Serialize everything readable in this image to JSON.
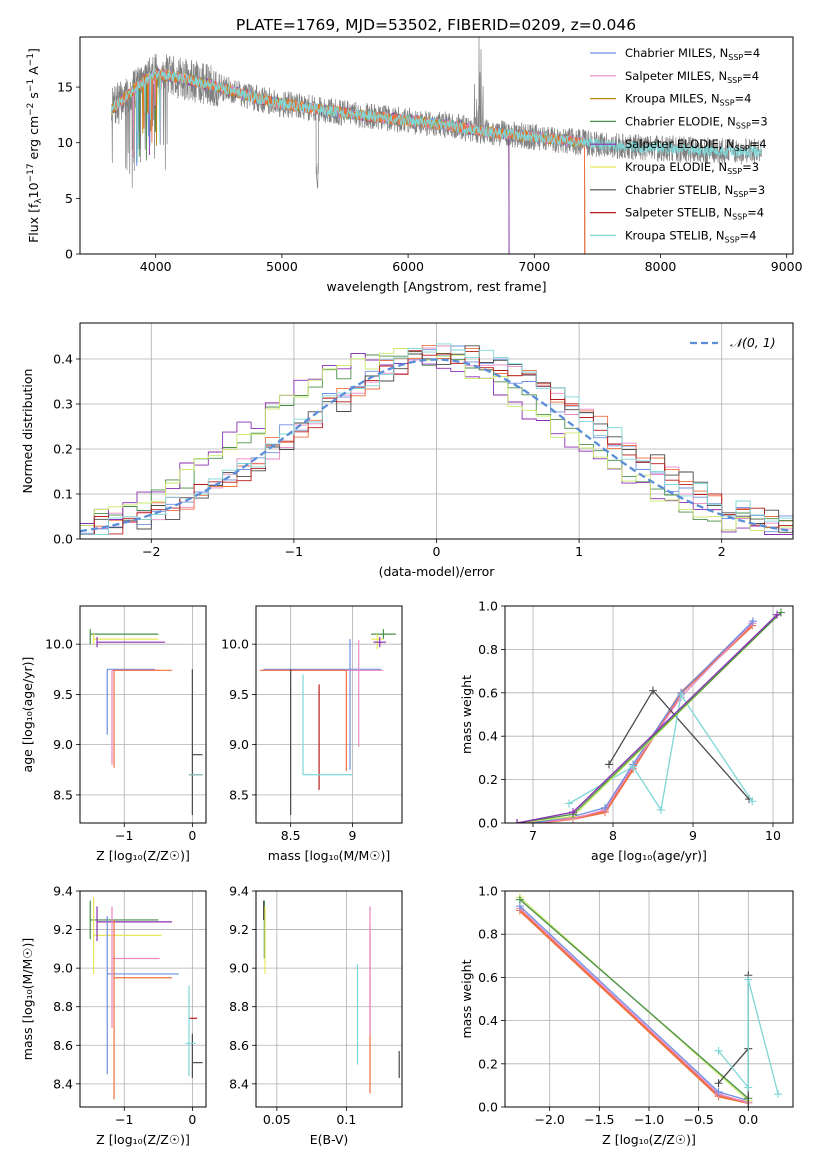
{
  "figure": {
    "title": "PLATE=1769, MJD=53502, FIBERID=0209, z=0.046"
  },
  "colors": {
    "chabrier_miles": "#6f8fe0",
    "salpeter_miles": "#e987c3",
    "kroupa_miles": "#b8860b",
    "chabrier_elodie": "#4a8f4a",
    "salpeter_elodie": "#8b2fb3",
    "kroupa_elodie": "#e8e85a",
    "chabrier_stelib": "#4a4a4a",
    "salpeter_stelib": "#b81c1c",
    "kroupa_stelib": "#7fd6d6",
    "data": "#808080",
    "gauss": "#5b8ed8",
    "orange": "#f07040",
    "lime": "#c8e86a"
  },
  "chart_data": [
    {
      "id": "spectrum",
      "type": "line",
      "xlabel": "wavelength [Angstrom, rest frame]",
      "ylabel_parts": [
        "Flux [f",
        "λ",
        "10",
        "−17",
        " erg cm",
        "−2",
        " s",
        "−1",
        " A",
        "−1",
        "]"
      ],
      "xlim": [
        3400,
        9050
      ],
      "ylim": [
        0,
        19.5
      ],
      "xticks": [
        4000,
        5000,
        6000,
        7000,
        8000,
        9000
      ],
      "yticks": [
        0,
        5,
        10,
        15
      ],
      "grid": false,
      "legend_position": "upper-right",
      "legend": [
        {
          "name": "Chabrier MILES, N",
          "sub": "SSP",
          "suffix": "=4",
          "color_key": "chabrier_miles"
        },
        {
          "name": "Salpeter MILES, N",
          "sub": "SSP",
          "suffix": "=4",
          "color_key": "salpeter_miles"
        },
        {
          "name": "Kroupa MILES, N",
          "sub": "SSP",
          "suffix": "=4",
          "color_key": "kroupa_miles"
        },
        {
          "name": "Chabrier ELODIE, N",
          "sub": "SSP",
          "suffix": "=3",
          "color_key": "chabrier_elodie"
        },
        {
          "name": "Salpeter ELODIE, N",
          "sub": "SSP",
          "suffix": "=4",
          "color_key": "salpeter_elodie"
        },
        {
          "name": "Kroupa ELODIE, N",
          "sub": "SSP",
          "suffix": "=3",
          "color_key": "kroupa_elodie"
        },
        {
          "name": "Chabrier STELIB, N",
          "sub": "SSP",
          "suffix": "=3",
          "color_key": "chabrier_stelib"
        },
        {
          "name": "Salpeter STELIB, N",
          "sub": "SSP",
          "suffix": "=4",
          "color_key": "salpeter_stelib"
        },
        {
          "name": "Kroupa STELIB, N",
          "sub": "SSP",
          "suffix": "=4",
          "color_key": "kroupa_stelib"
        }
      ],
      "continuum_x": [
        3650,
        3800,
        3900,
        4000,
        4200,
        4500,
        4800,
        5000,
        5300,
        5600,
        6000,
        6300,
        6600,
        7000,
        7400,
        7800,
        8200,
        8600,
        8800
      ],
      "continuum_y": [
        13.0,
        14.5,
        15.5,
        16.2,
        15.8,
        15.0,
        14.0,
        13.5,
        13.0,
        12.5,
        12.0,
        11.6,
        11.0,
        10.5,
        10.0,
        9.6,
        9.4,
        9.2,
        9.2
      ],
      "model_end_x": {
        "miles": 7400,
        "elodie": 6800,
        "stelib": 8800
      }
    },
    {
      "id": "residuals",
      "type": "step",
      "xlabel": "(data-model)/error",
      "ylabel": "Normed distribution",
      "xlim": [
        -2.5,
        2.5
      ],
      "ylim": [
        0,
        0.48
      ],
      "xticks": [
        -2,
        -1,
        0,
        1,
        2
      ],
      "yticks": [
        0.0,
        0.1,
        0.2,
        0.3,
        0.4
      ],
      "grid": true,
      "legend_position": "upper-right",
      "legend": [
        {
          "name": "𝒩(0, 1)",
          "color_key": "gauss",
          "style": "dashed"
        }
      ],
      "bin_width": 0.1,
      "bin_start": -2.5
    },
    {
      "id": "age_vs_Z",
      "type": "errorbar",
      "xlabel": "Z [log₁₀(Z/Z☉)]",
      "ylabel": "age  [log₁₀(age/yr)]",
      "xlim": [
        -1.65,
        0.2
      ],
      "ylim": [
        8.22,
        10.38
      ],
      "xticks": [
        -1,
        0
      ],
      "yticks": [
        8.5,
        9.0,
        9.5,
        10.0
      ],
      "grid": true,
      "points": [
        {
          "x": -1.5,
          "xerr": [
            0.0,
            1.0
          ],
          "y": 10.1,
          "yerr": [
            0.1,
            0.05
          ],
          "color_key": "chabrier_elodie"
        },
        {
          "x": -1.45,
          "xerr": [
            0.0,
            0.95
          ],
          "y": 10.05,
          "yerr": [
            0.05,
            0.05
          ],
          "color_key": "kroupa_elodie"
        },
        {
          "x": -1.4,
          "xerr": [
            0.0,
            1.0
          ],
          "y": 10.02,
          "yerr": [
            0.05,
            0.05
          ],
          "color_key": "salpeter_elodie"
        },
        {
          "x": -1.25,
          "xerr": [
            0.0,
            0.7
          ],
          "y": 9.75,
          "yerr": [
            0.65,
            0.0
          ],
          "color_key": "chabrier_miles"
        },
        {
          "x": -1.18,
          "xerr": [
            0.0,
            0.7
          ],
          "y": 9.74,
          "yerr": [
            0.94,
            0.0
          ],
          "color_key": "salpeter_miles"
        },
        {
          "x": -1.15,
          "xerr": [
            0.0,
            0.85
          ],
          "y": 9.74,
          "yerr": [
            0.97,
            0.0
          ],
          "color_key": "orange"
        },
        {
          "x": 0.0,
          "xerr": [
            0.0,
            0.15
          ],
          "y": 8.9,
          "yerr": [
            0.6,
            0.85
          ],
          "color_key": "chabrier_stelib"
        },
        {
          "x": -0.05,
          "xerr": [
            0.0,
            0.2
          ],
          "y": 8.7,
          "yerr": [
            0.0,
            0.0
          ],
          "color_key": "salpeter_stelib"
        },
        {
          "x": -0.05,
          "xerr": [
            0.0,
            0.2
          ],
          "y": 8.7,
          "yerr": [
            0.0,
            0.0
          ],
          "color_key": "kroupa_stelib"
        }
      ]
    },
    {
      "id": "age_vs_mass",
      "type": "errorbar",
      "xlabel": "mass [log₁₀(M/M☉)]",
      "ylabel": "",
      "xlim": [
        8.22,
        9.4
      ],
      "ylim": [
        8.22,
        10.38
      ],
      "xticks": [
        8.5,
        9.0
      ],
      "yticks": [
        8.5,
        9.0,
        9.5,
        10.0
      ],
      "grid": true,
      "points": [
        {
          "x": 9.25,
          "xerr": [
            0.1,
            0.1
          ],
          "y": 10.1,
          "yerr": [
            0.05,
            0.05
          ],
          "color_key": "chabrier_elodie"
        },
        {
          "x": 9.2,
          "xerr": [
            0.05,
            0.05
          ],
          "y": 10.05,
          "yerr": [
            0.1,
            0.05
          ],
          "color_key": "kroupa_elodie"
        },
        {
          "x": 9.22,
          "xerr": [
            0.05,
            0.05
          ],
          "y": 10.02,
          "yerr": [
            0.05,
            0.05
          ],
          "color_key": "salpeter_elodie"
        },
        {
          "x": 8.98,
          "xerr": [
            0.7,
            0.25
          ],
          "y": 9.75,
          "yerr": [
            1.0,
            0.3
          ],
          "color_key": "chabrier_miles"
        },
        {
          "x": 9.05,
          "xerr": [
            0.75,
            0.2
          ],
          "y": 9.74,
          "yerr": [
            0.76,
            0.3
          ],
          "color_key": "salpeter_miles"
        },
        {
          "x": 8.95,
          "xerr": [
            0.7,
            0.0
          ],
          "y": 9.74,
          "yerr": [
            1.0,
            0.0
          ],
          "color_key": "orange"
        },
        {
          "x": 8.5,
          "xerr": [
            0.0,
            0.0
          ],
          "y": 8.9,
          "yerr": [
            0.6,
            0.85
          ],
          "color_key": "chabrier_stelib"
        },
        {
          "x": 8.73,
          "xerr": [
            0.0,
            0.0
          ],
          "y": 8.7,
          "yerr": [
            0.15,
            0.9
          ],
          "color_key": "salpeter_stelib"
        },
        {
          "x": 8.6,
          "xerr": [
            0.0,
            0.4
          ],
          "y": 8.7,
          "yerr": [
            0.0,
            1.0
          ],
          "color_key": "kroupa_stelib"
        }
      ]
    },
    {
      "id": "weight_vs_age",
      "type": "line",
      "xlabel": "age  [log₁₀(age/yr)]",
      "ylabel": "mass weight",
      "xlim": [
        6.65,
        10.25
      ],
      "ylim": [
        0,
        1.0
      ],
      "xticks": [
        7,
        8,
        9,
        10
      ],
      "yticks": [
        0.0,
        0.2,
        0.4,
        0.6,
        0.8,
        1.0
      ],
      "grid": true,
      "series": [
        {
          "color_key": "orange",
          "x": [
            6.8,
            7.0,
            7.5,
            7.9,
            8.25,
            8.85,
            9.74
          ],
          "y": [
            0.0,
            0.0,
            0.02,
            0.05,
            0.25,
            0.6,
            0.91
          ]
        },
        {
          "color_key": "salpeter_miles",
          "x": [
            6.8,
            7.0,
            7.5,
            7.9,
            8.25,
            8.85,
            9.74
          ],
          "y": [
            0.0,
            0.0,
            0.02,
            0.06,
            0.26,
            0.58,
            0.92
          ]
        },
        {
          "color_key": "chabrier_miles",
          "x": [
            6.8,
            7.0,
            7.5,
            7.9,
            8.25,
            8.85,
            9.75
          ],
          "y": [
            0.0,
            0.0,
            0.03,
            0.07,
            0.27,
            0.6,
            0.93
          ]
        },
        {
          "color_key": "chabrier_stelib",
          "x": [
            7.95,
            8.5,
            9.7
          ],
          "y": [
            0.27,
            0.61,
            0.11
          ]
        },
        {
          "color_key": "kroupa_stelib",
          "x": [
            7.45,
            8.25,
            8.6,
            8.85,
            9.74
          ],
          "y": [
            0.09,
            0.26,
            0.06,
            0.59,
            0.1
          ]
        },
        {
          "color_key": "lime",
          "x": [
            6.8,
            7.5,
            10.1
          ],
          "y": [
            0.0,
            0.03,
            0.97
          ]
        },
        {
          "color_key": "chabrier_elodie",
          "x": [
            6.8,
            7.5,
            10.1
          ],
          "y": [
            0.0,
            0.04,
            0.97
          ]
        },
        {
          "color_key": "salpeter_elodie",
          "x": [
            6.8,
            7.5,
            10.05
          ],
          "y": [
            0.0,
            0.05,
            0.96
          ]
        }
      ]
    },
    {
      "id": "mass_vs_Z",
      "type": "errorbar",
      "xlabel": "Z [log₁₀(Z/Z☉)]",
      "ylabel": "mass [log₁₀(M/M☉)]",
      "xlim": [
        -1.65,
        0.2
      ],
      "ylim": [
        8.28,
        9.4
      ],
      "xticks": [
        -1,
        0
      ],
      "yticks": [
        8.4,
        8.6,
        8.8,
        9.0,
        9.2,
        9.4
      ],
      "grid": true,
      "points": [
        {
          "x": -1.5,
          "xerr": [
            0.0,
            1.0
          ],
          "y": 9.25,
          "yerr": [
            0.1,
            0.1
          ],
          "color_key": "chabrier_elodie"
        },
        {
          "x": -1.45,
          "xerr": [
            0.0,
            1.0
          ],
          "y": 9.17,
          "yerr": [
            0.2,
            0.2
          ],
          "color_key": "kroupa_elodie"
        },
        {
          "x": -1.4,
          "xerr": [
            0.0,
            1.1
          ],
          "y": 9.24,
          "yerr": [
            0.1,
            0.08
          ],
          "color_key": "salpeter_elodie"
        },
        {
          "x": -1.25,
          "xerr": [
            0.0,
            1.05
          ],
          "y": 8.97,
          "yerr": [
            0.52,
            0.3
          ],
          "color_key": "chabrier_miles"
        },
        {
          "x": -1.18,
          "xerr": [
            0.0,
            0.7
          ],
          "y": 9.05,
          "yerr": [
            0.36,
            0.27
          ],
          "color_key": "salpeter_miles"
        },
        {
          "x": -1.15,
          "xerr": [
            0.0,
            0.85
          ],
          "y": 8.95,
          "yerr": [
            0.63,
            0.3
          ],
          "color_key": "orange"
        },
        {
          "x": 0.0,
          "xerr": [
            0.0,
            0.15
          ],
          "y": 8.51,
          "yerr": [
            0.08,
            0.15
          ],
          "color_key": "chabrier_stelib"
        },
        {
          "x": -0.05,
          "xerr": [
            0.0,
            0.12
          ],
          "y": 8.74,
          "yerr": [
            0.0,
            0.0
          ],
          "color_key": "salpeter_stelib"
        },
        {
          "x": -0.05,
          "xerr": [
            0.05,
            0.1
          ],
          "y": 8.61,
          "yerr": [
            0.17,
            0.3
          ],
          "color_key": "kroupa_stelib"
        }
      ]
    },
    {
      "id": "mass_vs_ebv",
      "type": "errorbar",
      "xlabel": "E(B-V)",
      "ylabel": "",
      "xlim": [
        0.035,
        0.14
      ],
      "ylim": [
        8.28,
        9.4
      ],
      "xticks": [
        0.05,
        0.1
      ],
      "yticks": [
        8.4,
        8.6,
        8.8,
        9.0,
        9.2,
        9.4
      ],
      "grid": true,
      "points": [
        {
          "x": 0.041,
          "xerr": [
            0.0,
            0.0
          ],
          "y": 9.25,
          "yerr": [
            0.2,
            0.1
          ],
          "color_key": "chabrier_elodie"
        },
        {
          "x": 0.0415,
          "xerr": [
            0.0,
            0.0
          ],
          "y": 9.17,
          "yerr": [
            0.2,
            0.15
          ],
          "color_key": "kroupa_elodie"
        },
        {
          "x": 0.0405,
          "xerr": [
            0.0,
            0.0
          ],
          "y": 9.3,
          "yerr": [
            0.05,
            0.05
          ],
          "color_key": "chabrier_stelib"
        },
        {
          "x": 0.108,
          "xerr": [
            0.0,
            0.0
          ],
          "y": 8.8,
          "yerr": [
            0.3,
            0.22
          ],
          "color_key": "kroupa_stelib"
        },
        {
          "x": 0.117,
          "xerr": [
            0.0,
            0.0
          ],
          "y": 8.8,
          "yerr": [
            0.45,
            0.42
          ],
          "color_key": "orange"
        },
        {
          "x": 0.117,
          "xerr": [
            0.0,
            0.0
          ],
          "y": 8.95,
          "yerr": [
            0.3,
            0.37
          ],
          "color_key": "salpeter_miles"
        },
        {
          "x": 0.138,
          "xerr": [
            0.0,
            0.0
          ],
          "y": 8.5,
          "yerr": [
            0.07,
            0.07
          ],
          "color_key": "chabrier_stelib"
        }
      ]
    },
    {
      "id": "weight_vs_Z",
      "type": "line",
      "xlabel": "Z [log₁₀(Z/Z☉)]",
      "ylabel": "mass weight",
      "xlim": [
        -2.45,
        0.45
      ],
      "ylim": [
        0,
        1.0
      ],
      "xticks": [
        -2.0,
        -1.5,
        -1.0,
        -0.5,
        0.0
      ],
      "xtick_labels": [
        "−2.0",
        "−1.5",
        "−1.0",
        "−0.5",
        "0.0"
      ],
      "yticks": [
        0.0,
        0.2,
        0.4,
        0.6,
        0.8,
        1.0
      ],
      "grid": true,
      "series": [
        {
          "color_key": "orange",
          "x": [
            -2.3,
            -0.3,
            0.0
          ],
          "y": [
            0.91,
            0.05,
            0.02
          ]
        },
        {
          "color_key": "salpeter_miles",
          "x": [
            -2.3,
            -0.3,
            0.0
          ],
          "y": [
            0.92,
            0.06,
            0.02
          ]
        },
        {
          "color_key": "chabrier_miles",
          "x": [
            -2.3,
            -0.3,
            0.0
          ],
          "y": [
            0.93,
            0.07,
            0.03
          ]
        },
        {
          "color_key": "lime",
          "x": [
            -2.3,
            0.0
          ],
          "y": [
            0.97,
            0.03
          ]
        },
        {
          "color_key": "chabrier_elodie",
          "x": [
            -2.3,
            0.0
          ],
          "y": [
            0.96,
            0.04
          ]
        },
        {
          "color_key": "chabrier_stelib",
          "x": [
            -0.3,
            0.0,
            0.0,
            0.0
          ],
          "y": [
            0.11,
            0.27,
            0.61,
            0.0
          ]
        },
        {
          "color_key": "kroupa_stelib",
          "x": [
            -0.3,
            0.0,
            0.0,
            0.3
          ],
          "y": [
            0.26,
            0.09,
            0.59,
            0.06
          ]
        }
      ]
    }
  ]
}
